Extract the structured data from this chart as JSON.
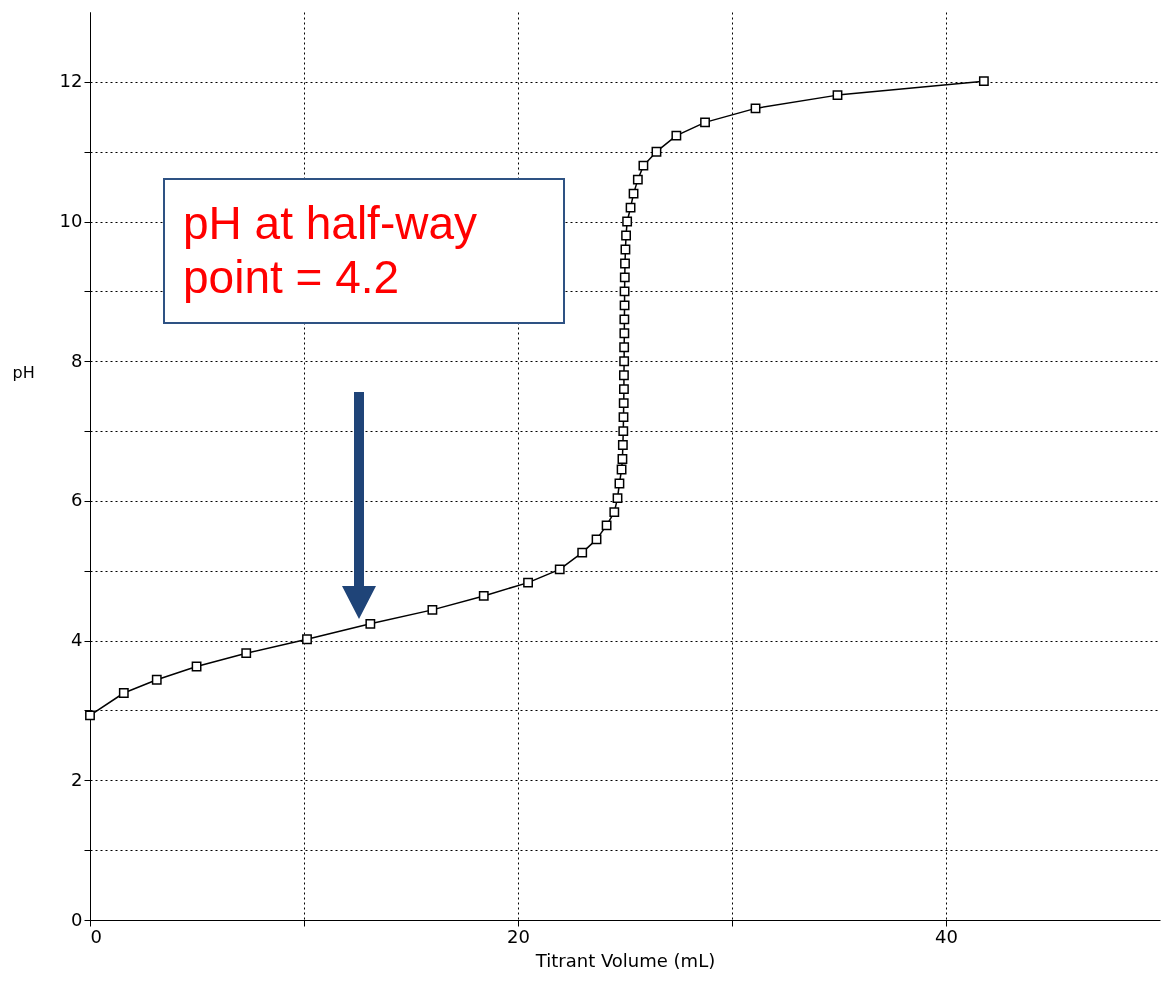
{
  "chart_data": {
    "type": "line",
    "xlabel": "Titrant Volume (mL)",
    "ylabel": "pH",
    "x": [
      0,
      1.58,
      3.12,
      4.98,
      7.3,
      10.14,
      13.1,
      16.0,
      18.4,
      20.47,
      21.95,
      23.0,
      23.67,
      24.14,
      24.5,
      24.65,
      24.74,
      24.84,
      24.88,
      24.9,
      24.92,
      24.93,
      24.94,
      24.95,
      24.95,
      24.96,
      24.96,
      24.97,
      24.97,
      24.98,
      24.98,
      24.99,
      25.0,
      25.02,
      25.05,
      25.1,
      25.26,
      25.4,
      25.6,
      25.86,
      26.47,
      27.4,
      28.74,
      31.1,
      34.93,
      41.77
    ],
    "series": [
      {
        "color": "#000000",
        "values": [
          2.93,
          3.25,
          3.44,
          3.63,
          3.82,
          4.02,
          4.24,
          4.44,
          4.64,
          4.83,
          5.02,
          5.26,
          5.45,
          5.65,
          5.84,
          6.04,
          6.25,
          6.45,
          6.6,
          6.8,
          7.0,
          7.2,
          7.4,
          7.6,
          7.8,
          8.0,
          8.2,
          8.4,
          8.6,
          8.8,
          9.0,
          9.2,
          9.4,
          9.6,
          9.8,
          10.0,
          10.2,
          10.4,
          10.6,
          10.8,
          11.0,
          11.23,
          11.42,
          11.62,
          11.81,
          12.01
        ]
      }
    ],
    "xlim": [
      0,
      50
    ],
    "xticks": [
      0,
      {
        "value": 10,
        "label": null
      },
      20,
      {
        "value": 30,
        "label": null
      },
      40
    ],
    "ylim": [
      0,
      13
    ],
    "yticks": [
      0,
      {
        "value": 1,
        "label": null
      },
      2,
      {
        "value": 3,
        "label": null
      },
      4,
      {
        "value": 5,
        "label": null
      },
      6,
      {
        "value": 7,
        "label": null
      },
      8,
      {
        "value": 9,
        "label": null
      },
      10,
      {
        "value": 11,
        "label": null
      },
      12
    ],
    "grid": true,
    "marker": "square",
    "line_style": "solid",
    "annotations": [
      "pH at half-way point = 4.2"
    ]
  }
}
